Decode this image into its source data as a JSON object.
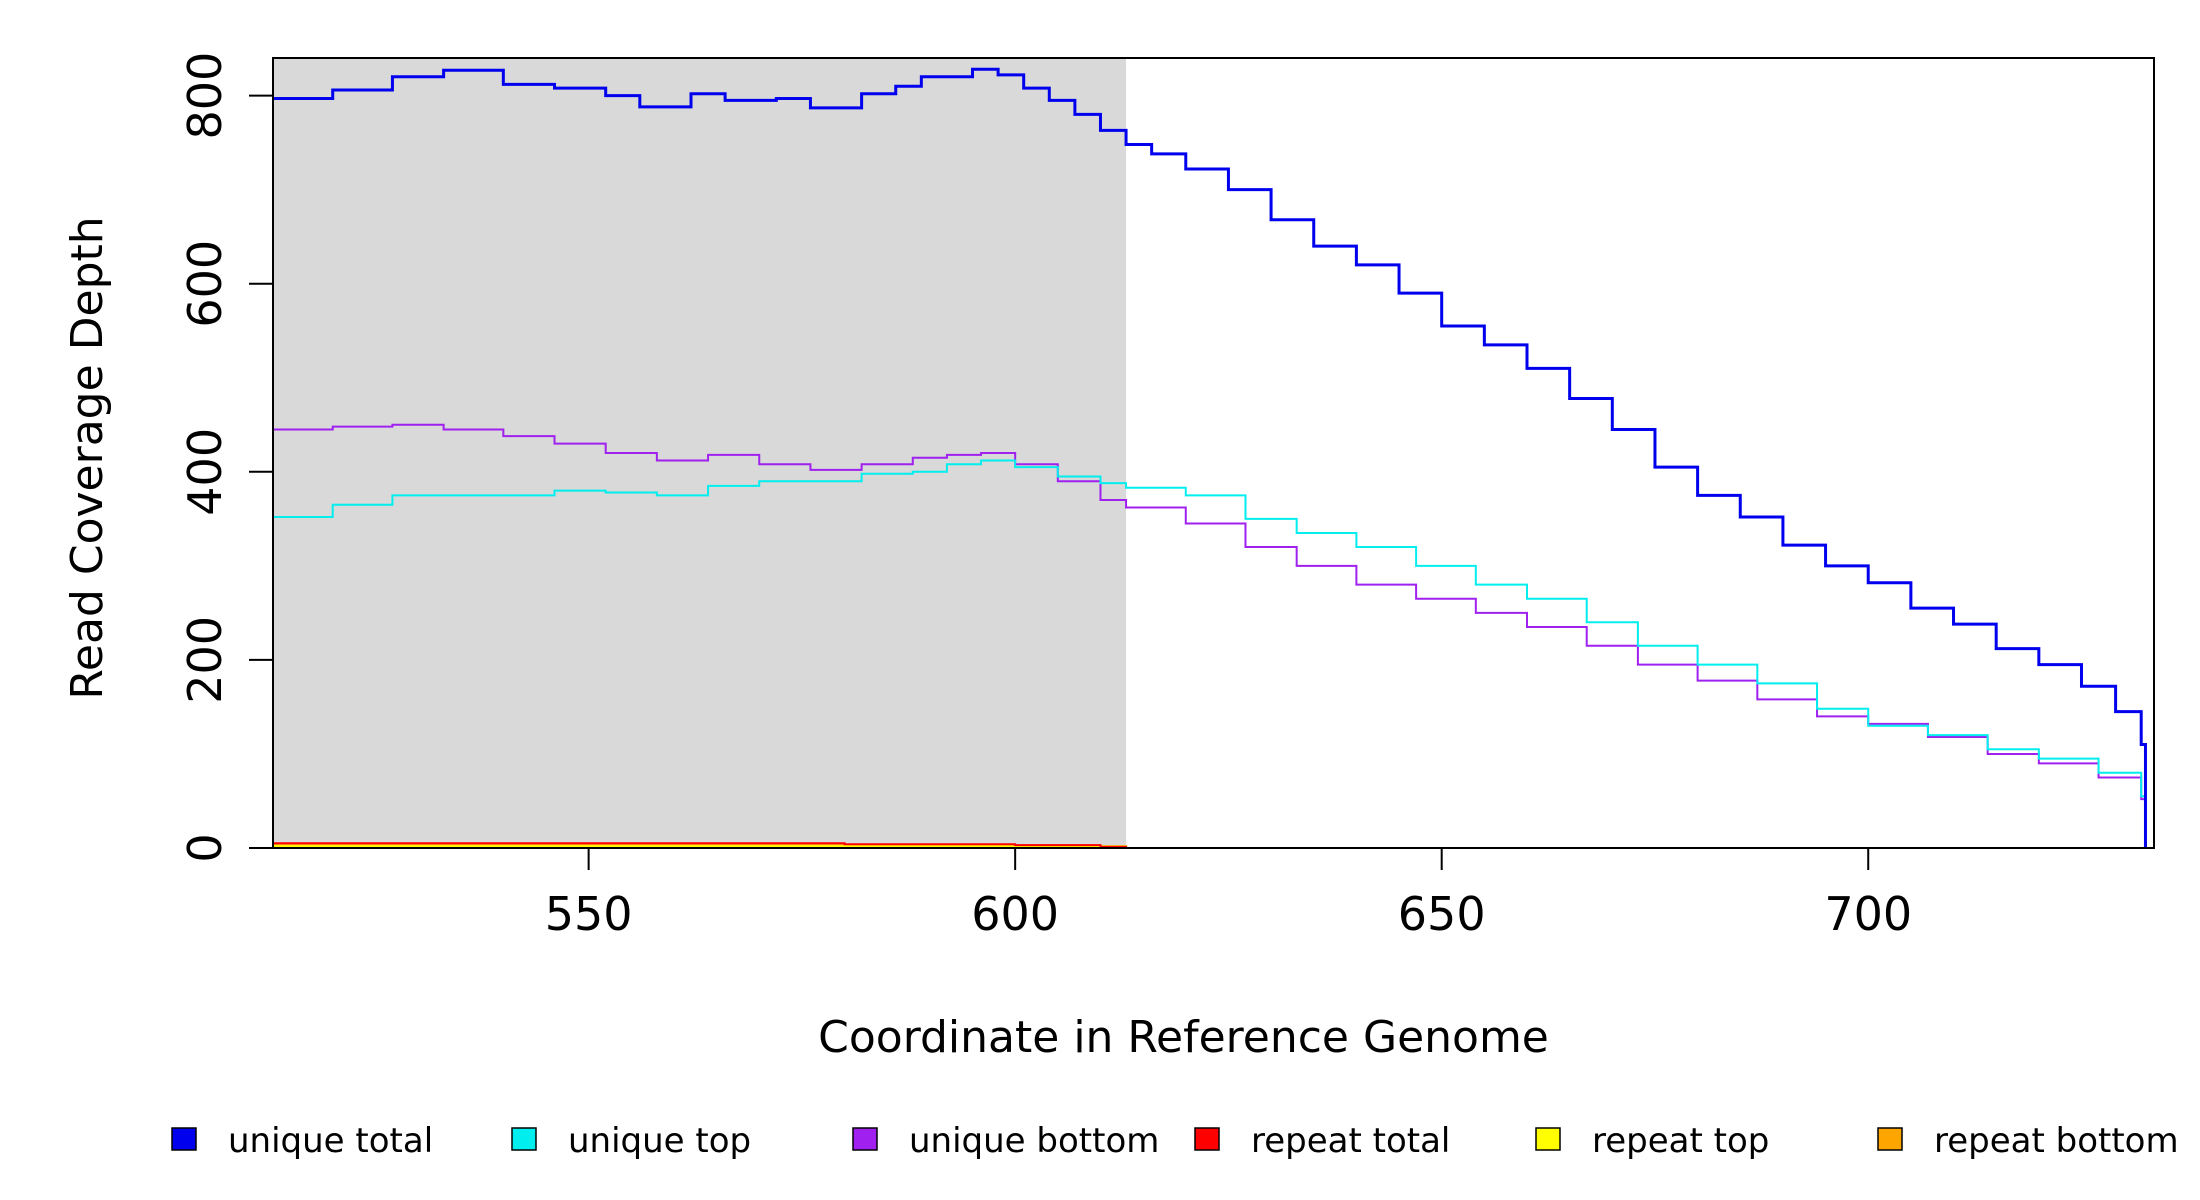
{
  "chart_data": {
    "type": "line",
    "title": "",
    "xlabel": "Coordinate in Reference Genome",
    "ylabel": "Read Coverage Depth",
    "xlim": [
      513,
      733.5
    ],
    "ylim": [
      0,
      840
    ],
    "xticks": [
      550,
      600,
      650,
      700
    ],
    "yticks": [
      0,
      200,
      400,
      600,
      800
    ],
    "grid": false,
    "highlight_region": {
      "x_from": 513,
      "x_to": 613,
      "color": "#d9d9d9"
    },
    "legend_position": "bottom",
    "series": [
      {
        "name": "unique total",
        "color": "#0000ee",
        "x": [
          513,
          520,
          527,
          533,
          540,
          546,
          552,
          556,
          562,
          566,
          572,
          576,
          582,
          586,
          589,
          595,
          598,
          601,
          604,
          607,
          610,
          613,
          616,
          620,
          625,
          630,
          635,
          640,
          645,
          650,
          655,
          660,
          665,
          670,
          675,
          680,
          685,
          690,
          695,
          700,
          705,
          710,
          715,
          720,
          725,
          729,
          732,
          732.5
        ],
        "values": [
          797,
          806,
          820,
          827,
          812,
          808,
          800,
          788,
          802,
          795,
          797,
          787,
          802,
          810,
          820,
          828,
          822,
          808,
          795,
          780,
          763,
          748,
          738,
          722,
          700,
          668,
          640,
          620,
          590,
          555,
          535,
          510,
          478,
          445,
          405,
          375,
          352,
          322,
          300,
          282,
          255,
          238,
          212,
          195,
          172,
          145,
          110,
          0
        ]
      },
      {
        "name": "unique top",
        "color": "#00eeee",
        "x": [
          513,
          520,
          527,
          533,
          540,
          546,
          552,
          558,
          564,
          570,
          576,
          582,
          588,
          592,
          596,
          600,
          605,
          610,
          613,
          620,
          627,
          633,
          640,
          647,
          654,
          660,
          667,
          673,
          680,
          687,
          694,
          700,
          707,
          714,
          720,
          727,
          732,
          732.5
        ],
        "values": [
          352,
          365,
          375,
          375,
          375,
          380,
          378,
          375,
          385,
          390,
          390,
          398,
          400,
          408,
          412,
          405,
          395,
          388,
          383,
          375,
          350,
          335,
          320,
          300,
          280,
          265,
          240,
          215,
          195,
          175,
          148,
          130,
          120,
          105,
          95,
          80,
          55,
          0
        ]
      },
      {
        "name": "unique bottom",
        "color": "#a020f0",
        "x": [
          513,
          520,
          527,
          533,
          540,
          546,
          552,
          558,
          564,
          570,
          576,
          582,
          588,
          592,
          596,
          600,
          605,
          610,
          613,
          620,
          627,
          633,
          640,
          647,
          654,
          660,
          667,
          673,
          680,
          687,
          694,
          700,
          707,
          714,
          720,
          727,
          732,
          732.5
        ],
        "values": [
          445,
          448,
          450,
          445,
          438,
          430,
          420,
          412,
          418,
          408,
          402,
          408,
          415,
          418,
          420,
          408,
          390,
          370,
          362,
          345,
          320,
          300,
          280,
          265,
          250,
          235,
          215,
          195,
          178,
          158,
          140,
          132,
          118,
          100,
          90,
          75,
          52,
          0
        ]
      },
      {
        "name": "repeat total",
        "color": "#ff0000",
        "x": [
          513,
          560,
          580,
          600,
          610,
          613,
          733
        ],
        "values": [
          5,
          5,
          4,
          3,
          1,
          0,
          0
        ]
      },
      {
        "name": "repeat top",
        "color": "#ffff00",
        "x": [
          513,
          580,
          600,
          613,
          733
        ],
        "values": [
          2,
          2,
          1,
          0,
          0
        ]
      },
      {
        "name": "repeat bottom",
        "color": "#ffa500",
        "x": [
          513,
          580,
          600,
          613,
          733
        ],
        "values": [
          3,
          3,
          2,
          0,
          0
        ]
      }
    ]
  }
}
